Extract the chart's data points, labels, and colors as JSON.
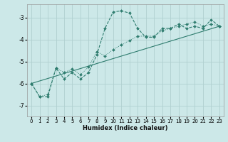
{
  "xlabel": "Humidex (Indice chaleur)",
  "bg_color": "#cce8e8",
  "grid_color": "#b0d0d0",
  "line_color": "#2e7c6e",
  "xlim": [
    -0.5,
    23.5
  ],
  "ylim": [
    -7.5,
    -2.4
  ],
  "yticks": [
    -7,
    -6,
    -5,
    -4,
    -3
  ],
  "xticks": [
    0,
    1,
    2,
    3,
    4,
    5,
    6,
    7,
    8,
    9,
    10,
    11,
    12,
    13,
    14,
    15,
    16,
    17,
    18,
    19,
    20,
    21,
    22,
    23
  ],
  "series1_x": [
    0,
    1,
    2,
    3,
    4,
    5,
    6,
    7,
    8,
    9,
    10,
    11,
    12,
    13,
    14,
    15,
    16,
    17,
    18,
    19,
    20,
    21,
    22,
    23
  ],
  "series1_y": [
    -6.0,
    -6.6,
    -6.6,
    -5.3,
    -5.8,
    -5.5,
    -5.8,
    -5.5,
    -4.7,
    -3.5,
    -2.75,
    -2.7,
    -2.8,
    -3.5,
    -3.9,
    -3.9,
    -3.5,
    -3.5,
    -3.3,
    -3.5,
    -3.4,
    -3.5,
    -3.1,
    -3.4
  ],
  "series2_x": [
    0,
    1,
    2,
    3,
    4,
    5,
    6,
    7,
    8,
    9,
    10,
    11,
    12,
    13,
    14,
    15,
    16,
    17,
    18,
    19,
    20,
    21,
    22,
    23
  ],
  "series2_y": [
    -6.0,
    -6.6,
    -6.5,
    -5.3,
    -5.5,
    -5.35,
    -5.6,
    -5.25,
    -4.55,
    -4.75,
    -4.45,
    -4.25,
    -4.05,
    -3.85,
    -3.85,
    -3.85,
    -3.6,
    -3.5,
    -3.4,
    -3.3,
    -3.2,
    -3.4,
    -3.3,
    -3.4
  ],
  "series3_x": [
    0,
    23
  ],
  "series3_y": [
    -6.0,
    -3.4
  ]
}
